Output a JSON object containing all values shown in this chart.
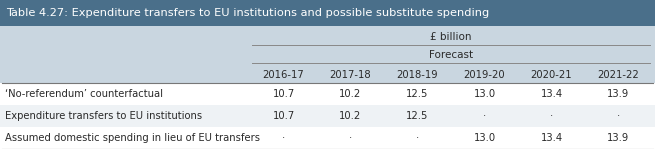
{
  "title": "Table 4.27: Expenditure transfers to EU institutions and possible substitute spending",
  "year_labels": [
    "2016-17",
    "2017-18",
    "2018-19",
    "2019-20",
    "2020-21",
    "2021-22"
  ],
  "rows": [
    [
      "‘No-referendum’ counterfactual",
      "10.7",
      "10.2",
      "12.5",
      "13.0",
      "13.4",
      "13.9"
    ],
    [
      "Expenditure transfers to EU institutions",
      "10.7",
      "10.2",
      "12.5",
      "·",
      "·",
      "·"
    ],
    [
      "Assumed domestic spending in lieu of EU transfers",
      "·",
      "·",
      "·",
      "13.0",
      "13.4",
      "13.9"
    ]
  ],
  "title_color": "#4a6f8a",
  "header_bg_color": "#c9d6e0",
  "row_bg_colors": [
    "#ffffff",
    "#eef2f5",
    "#ffffff"
  ],
  "text_color": "#2a2a2a",
  "header_text_color": "#2a2a2a",
  "fig_width": 6.55,
  "fig_height": 1.49,
  "dpi": 100
}
